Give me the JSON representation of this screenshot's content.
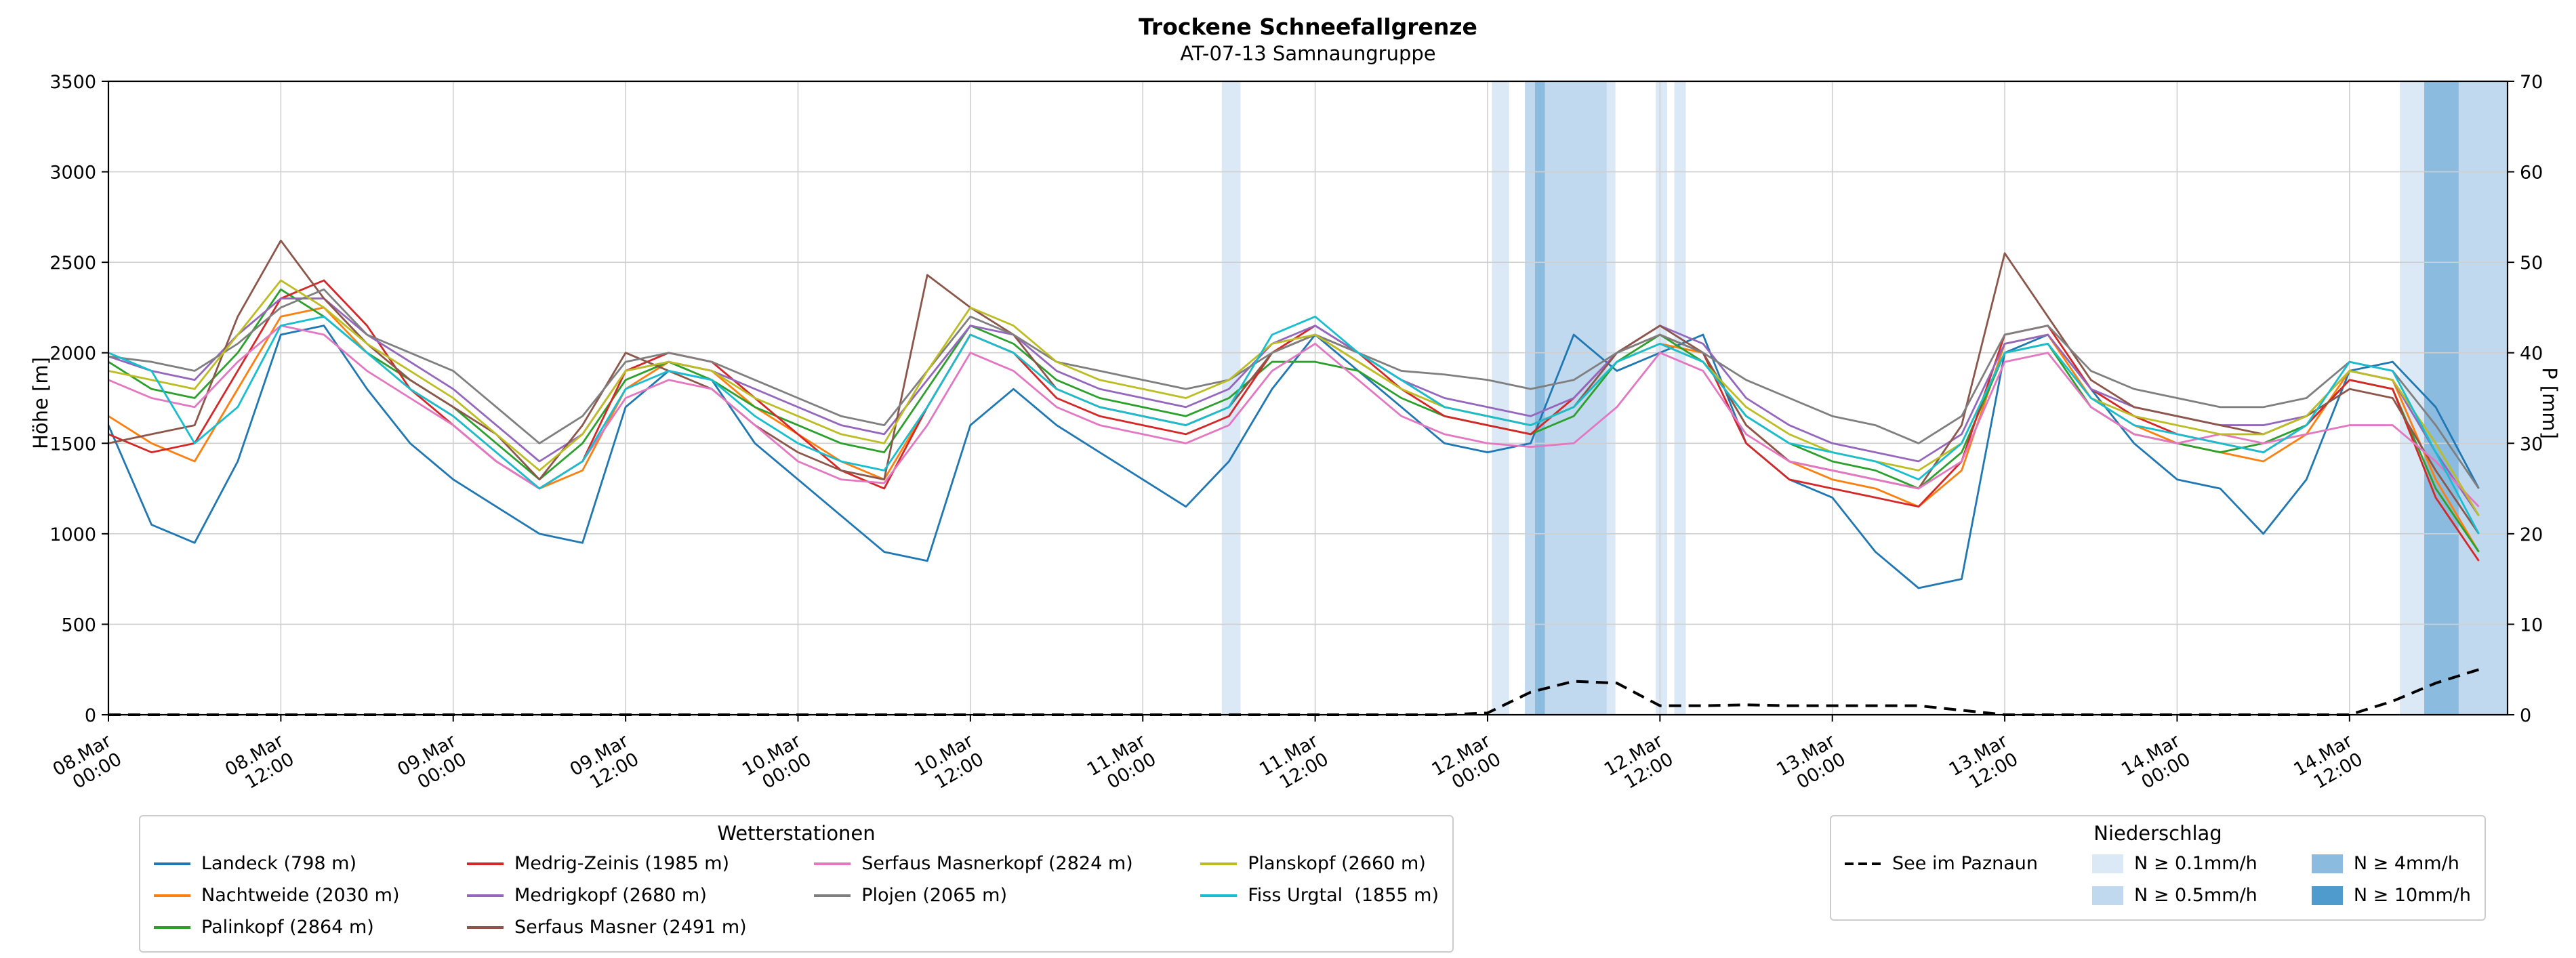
{
  "title": "Trockene Schneefallgrenze",
  "subtitle": "AT-07-13 Samnaungruppe",
  "axes": {
    "y_left_label": "Höhe [m]",
    "y_right_label": "P [mm]",
    "y_left_ticks": [
      0,
      500,
      1000,
      1500,
      2000,
      2500,
      3000,
      3500
    ],
    "y_right_ticks": [
      0,
      10,
      20,
      30,
      40,
      50,
      60,
      70
    ]
  },
  "legend_stations": {
    "title": "Wetterstationen"
  },
  "legend_precip": {
    "title": "Niederschlag",
    "line_item": {
      "label": "See im Paznaun"
    },
    "levels": [
      {
        "label": "N ≥ 0.1mm/h",
        "color": "#dbe9f6"
      },
      {
        "label": "N ≥ 0.5mm/h",
        "color": "#c1d9ee"
      },
      {
        "label": "N ≥ 4mm/h",
        "color": "#8bbbde"
      },
      {
        "label": "N ≥ 10mm/h",
        "color": "#4f9bcd"
      }
    ]
  },
  "chart_data": {
    "type": "line",
    "title": "Trockene Schneefallgrenze",
    "subtitle": "AT-07-13 Samnaungruppe",
    "x_unit": "hours since 08.Mar 00:00",
    "x_range": [
      0,
      167
    ],
    "y_left": {
      "label": "Höhe [m]",
      "range": [
        0,
        3500
      ]
    },
    "y_right": {
      "label": "P [mm]",
      "range": [
        0,
        70
      ]
    },
    "grid": true,
    "x_ticks": [
      {
        "t": 0,
        "date": "08.Mar",
        "time": "00:00"
      },
      {
        "t": 12,
        "date": "08.Mar",
        "time": "12:00"
      },
      {
        "t": 24,
        "date": "09.Mar",
        "time": "00:00"
      },
      {
        "t": 36,
        "date": "09.Mar",
        "time": "12:00"
      },
      {
        "t": 48,
        "date": "10.Mar",
        "time": "00:00"
      },
      {
        "t": 60,
        "date": "10.Mar",
        "time": "12:00"
      },
      {
        "t": 72,
        "date": "11.Mar",
        "time": "00:00"
      },
      {
        "t": 84,
        "date": "11.Mar",
        "time": "12:00"
      },
      {
        "t": 96,
        "date": "12.Mar",
        "time": "00:00"
      },
      {
        "t": 108,
        "date": "12.Mar",
        "time": "12:00"
      },
      {
        "t": 120,
        "date": "13.Mar",
        "time": "00:00"
      },
      {
        "t": 132,
        "date": "13.Mar",
        "time": "12:00"
      },
      {
        "t": 144,
        "date": "14.Mar",
        "time": "00:00"
      },
      {
        "t": 156,
        "date": "14.Mar",
        "time": "12:00"
      }
    ],
    "x": [
      0,
      3,
      6,
      9,
      12,
      15,
      18,
      21,
      24,
      27,
      30,
      33,
      36,
      39,
      42,
      45,
      48,
      51,
      54,
      57,
      60,
      63,
      66,
      69,
      72,
      75,
      78,
      81,
      84,
      87,
      90,
      93,
      96,
      99,
      102,
      105,
      108,
      111,
      114,
      117,
      120,
      123,
      126,
      129,
      132,
      135,
      138,
      141,
      144,
      147,
      150,
      153,
      156,
      159,
      162,
      165
    ],
    "series": [
      {
        "name": "Landeck (798 m)",
        "color": "#1f77b4",
        "values": [
          1600,
          1050,
          950,
          1400,
          2100,
          2150,
          1800,
          1500,
          1300,
          1150,
          1000,
          950,
          1700,
          1900,
          1850,
          1500,
          1300,
          1100,
          900,
          850,
          1600,
          1800,
          1600,
          1450,
          1300,
          1150,
          1400,
          1800,
          2100,
          1900,
          1700,
          1500,
          1450,
          1500,
          2100,
          1900,
          2000,
          2100,
          1500,
          1300,
          1200,
          900,
          700,
          750,
          2000,
          2100,
          1800,
          1500,
          1300,
          1250,
          1000,
          1300,
          1900,
          1950,
          1700,
          1250
        ]
      },
      {
        "name": "Nachtweide (2030 m)",
        "color": "#ff7f0e",
        "values": [
          1650,
          1500,
          1400,
          1800,
          2200,
          2250,
          2000,
          1800,
          1650,
          1450,
          1250,
          1350,
          1800,
          1950,
          1900,
          1700,
          1550,
          1400,
          1300,
          1700,
          2100,
          2000,
          1800,
          1700,
          1650,
          1600,
          1700,
          2000,
          2100,
          1950,
          1800,
          1700,
          1650,
          1600,
          1700,
          1950,
          2050,
          2000,
          1600,
          1400,
          1300,
          1250,
          1150,
          1350,
          2050,
          2100,
          1750,
          1600,
          1500,
          1450,
          1400,
          1550,
          1900,
          1850,
          1300,
          900
        ]
      },
      {
        "name": "Palinkopf (2864 m)",
        "color": "#2ca02c",
        "values": [
          1950,
          1800,
          1750,
          2000,
          2350,
          2200,
          2000,
          1850,
          1700,
          1500,
          1300,
          1500,
          1850,
          1950,
          1850,
          1700,
          1600,
          1500,
          1450,
          1800,
          2150,
          2050,
          1850,
          1750,
          1700,
          1650,
          1750,
          1950,
          1950,
          1900,
          1750,
          1650,
          1600,
          1550,
          1650,
          1950,
          2100,
          1950,
          1650,
          1500,
          1400,
          1350,
          1250,
          1450,
          2000,
          2050,
          1700,
          1550,
          1500,
          1450,
          1500,
          1600,
          1850,
          1800,
          1250,
          900
        ]
      },
      {
        "name": "Medrig-Zeinis (1985 m)",
        "color": "#d62728",
        "values": [
          1550,
          1450,
          1500,
          1900,
          2300,
          2400,
          2150,
          1800,
          1600,
          1400,
          1250,
          1400,
          1900,
          2000,
          1950,
          1750,
          1550,
          1350,
          1250,
          1700,
          2100,
          2000,
          1750,
          1650,
          1600,
          1550,
          1650,
          2000,
          2150,
          2000,
          1800,
          1650,
          1600,
          1550,
          1750,
          2000,
          2100,
          2000,
          1500,
          1300,
          1250,
          1200,
          1150,
          1400,
          2100,
          2150,
          1800,
          1650,
          1550,
          1500,
          1450,
          1600,
          1850,
          1800,
          1200,
          850
        ]
      },
      {
        "name": "Medrigkopf (2680 m)",
        "color": "#9467bd",
        "values": [
          1980,
          1900,
          1850,
          2100,
          2300,
          2300,
          2100,
          1950,
          1800,
          1600,
          1400,
          1550,
          1900,
          1950,
          1900,
          1800,
          1700,
          1600,
          1550,
          1850,
          2150,
          2100,
          1900,
          1800,
          1750,
          1700,
          1800,
          2050,
          2150,
          2000,
          1850,
          1750,
          1700,
          1650,
          1750,
          2000,
          2150,
          2050,
          1750,
          1600,
          1500,
          1450,
          1400,
          1550,
          2050,
          2100,
          1800,
          1700,
          1650,
          1600,
          1600,
          1650,
          1900,
          1850,
          1450,
          1100
        ]
      },
      {
        "name": "Serfaus Masner (2491 m)",
        "color": "#8c564b",
        "values": [
          1500,
          1550,
          1600,
          2200,
          2620,
          2300,
          2050,
          1850,
          1700,
          1550,
          1300,
          1600,
          2000,
          1900,
          1800,
          1600,
          1450,
          1350,
          1300,
          2430,
          2250,
          2100,
          1800,
          1700,
          1650,
          1600,
          1700,
          2000,
          2100,
          2000,
          1850,
          1700,
          1650,
          1600,
          1700,
          2000,
          2150,
          2000,
          1600,
          1400,
          1350,
          1300,
          1250,
          1600,
          2550,
          2200,
          1850,
          1700,
          1650,
          1600,
          1550,
          1650,
          1800,
          1750,
          1350,
          1000
        ]
      },
      {
        "name": "Serfaus Masnerkopf (2824 m)",
        "color": "#e377c2",
        "values": [
          1850,
          1750,
          1700,
          1950,
          2150,
          2100,
          1900,
          1750,
          1600,
          1400,
          1250,
          1400,
          1750,
          1850,
          1800,
          1600,
          1400,
          1300,
          1280,
          1600,
          2000,
          1900,
          1700,
          1600,
          1550,
          1500,
          1600,
          1900,
          2050,
          1850,
          1650,
          1550,
          1500,
          1480,
          1500,
          1700,
          2000,
          1900,
          1550,
          1400,
          1350,
          1300,
          1250,
          1400,
          1950,
          2000,
          1700,
          1550,
          1500,
          1550,
          1500,
          1550,
          1600,
          1600,
          1400,
          1150
        ]
      },
      {
        "name": "Plojen (2065 m)",
        "color": "#7f7f7f",
        "values": [
          1980,
          1950,
          1900,
          2050,
          2250,
          2350,
          2100,
          2000,
          1900,
          1700,
          1500,
          1650,
          1950,
          2000,
          1950,
          1850,
          1750,
          1650,
          1600,
          1900,
          2200,
          2100,
          1950,
          1900,
          1850,
          1800,
          1850,
          2000,
          2100,
          2000,
          1900,
          1880,
          1850,
          1800,
          1850,
          2000,
          2100,
          2000,
          1850,
          1750,
          1650,
          1600,
          1500,
          1650,
          2100,
          2150,
          1900,
          1800,
          1750,
          1700,
          1700,
          1750,
          1950,
          1900,
          1600,
          1250
        ]
      },
      {
        "name": "Planskopf (2660 m)",
        "color": "#bcbd22",
        "values": [
          1900,
          1850,
          1800,
          2100,
          2400,
          2250,
          2050,
          1900,
          1750,
          1550,
          1350,
          1550,
          1900,
          1950,
          1900,
          1750,
          1650,
          1550,
          1500,
          1900,
          2250,
          2150,
          1950,
          1850,
          1800,
          1750,
          1850,
          2050,
          2100,
          1950,
          1800,
          1700,
          1650,
          1600,
          1700,
          1950,
          2050,
          1950,
          1700,
          1550,
          1450,
          1400,
          1350,
          1500,
          2000,
          2050,
          1750,
          1650,
          1600,
          1550,
          1550,
          1650,
          1900,
          1850,
          1500,
          1100
        ]
      },
      {
        "name": "Fiss Urgtal  (1855 m)",
        "color": "#17becf",
        "values": [
          2000,
          1900,
          1500,
          1700,
          2150,
          2200,
          2000,
          1800,
          1650,
          1450,
          1250,
          1400,
          1800,
          1900,
          1850,
          1650,
          1500,
          1400,
          1350,
          1700,
          2100,
          2000,
          1800,
          1700,
          1650,
          1600,
          1700,
          2100,
          2200,
          2000,
          1850,
          1700,
          1650,
          1600,
          1700,
          1950,
          2050,
          1950,
          1650,
          1500,
          1450,
          1400,
          1300,
          1500,
          2000,
          2050,
          1750,
          1600,
          1550,
          1500,
          1450,
          1600,
          1950,
          1900,
          1450,
          1000
        ]
      }
    ],
    "precip_line": {
      "name": "See im Paznaun",
      "axis": "right",
      "color": "#000000",
      "dashed": true,
      "values": [
        0,
        0,
        0,
        0,
        0,
        0,
        0,
        0,
        0,
        0,
        0,
        0,
        0,
        0,
        0,
        0,
        0,
        0,
        0,
        0,
        0,
        0,
        0,
        0,
        0,
        0,
        0,
        0,
        0,
        0,
        0,
        0,
        0.2,
        2.5,
        3.7,
        3.5,
        1.0,
        1.0,
        1.1,
        1.0,
        1.0,
        1.0,
        1.0,
        0.5,
        0,
        0,
        0,
        0,
        0,
        0,
        0,
        0,
        0,
        1.5,
        3.5,
        5.0
      ]
    },
    "band_colors": [
      "#dbe9f6",
      "#c1d9ee",
      "#8bbbde",
      "#4f9bcd"
    ],
    "precip_bands": [
      {
        "t0": 77.5,
        "t1": 78.8,
        "level": 0
      },
      {
        "t0": 96.3,
        "t1": 97.5,
        "level": 0
      },
      {
        "t0": 98.6,
        "t1": 99.3,
        "level": 1
      },
      {
        "t0": 99.3,
        "t1": 100.0,
        "level": 2
      },
      {
        "t0": 100.0,
        "t1": 104.3,
        "level": 1
      },
      {
        "t0": 104.3,
        "t1": 104.9,
        "level": 0
      },
      {
        "t0": 107.7,
        "t1": 108.5,
        "level": 0
      },
      {
        "t0": 109.0,
        "t1": 109.8,
        "level": 0
      },
      {
        "t0": 159.5,
        "t1": 161.2,
        "level": 0
      },
      {
        "t0": 161.2,
        "t1": 163.6,
        "level": 2
      },
      {
        "t0": 163.6,
        "t1": 167.0,
        "level": 1
      }
    ]
  }
}
